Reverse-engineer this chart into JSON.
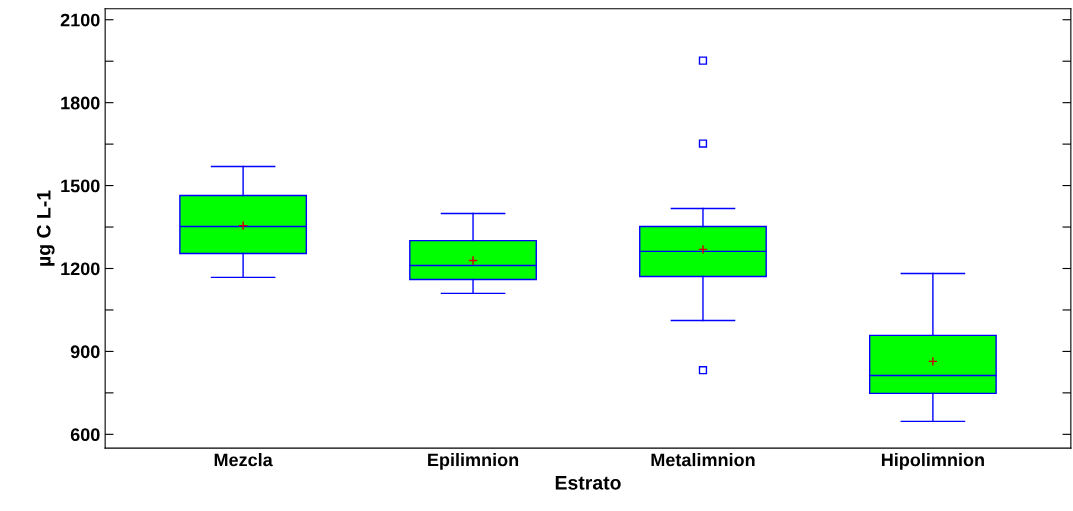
{
  "chart_data": {
    "type": "box",
    "xlabel": "Estrato",
    "ylabel": "µg C L-1",
    "categories": [
      "Mezcla",
      "Epilimnion",
      "Metalimnion",
      "Hipolimnion"
    ],
    "color": "#00ff00",
    "boxes": [
      {
        "low": 1168,
        "q1": 1254,
        "median": 1352,
        "q3": 1464,
        "high": 1569,
        "mean": 1355
      },
      {
        "low": 1110,
        "q1": 1160,
        "median": 1211,
        "q3": 1301,
        "high": 1399,
        "mean": 1229
      },
      {
        "low": 1012,
        "q1": 1171,
        "median": 1262,
        "q3": 1352,
        "high": 1417,
        "mean": 1269,
        "outliers": [
          1952,
          1652,
          832
        ]
      },
      {
        "low": 647,
        "q1": 748,
        "median": 813,
        "q3": 958,
        "high": 1182,
        "mean": 864
      }
    ],
    "ylim": [
      550,
      2140
    ],
    "yticks": [
      600,
      {
        "value": 750,
        "label": null
      },
      900,
      {
        "value": 1050,
        "label": null
      },
      1200,
      {
        "value": 1350,
        "label": null
      },
      1500,
      {
        "value": 1650,
        "label": null
      },
      1800,
      {
        "value": 1950,
        "label": null
      },
      2100
    ],
    "grid": false
  }
}
